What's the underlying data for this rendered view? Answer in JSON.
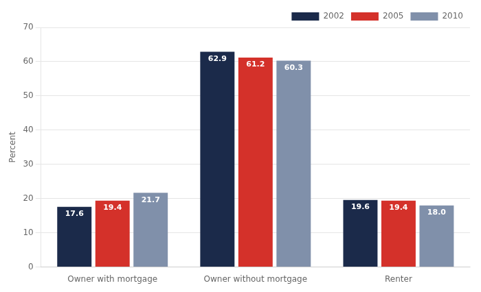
{
  "chart_data": {
    "type": "bar",
    "categories": [
      "Owner with mortgage",
      "Owner without mortgage",
      "Renter"
    ],
    "series": [
      {
        "name": "2002",
        "color": "#1b2a4a",
        "values": [
          17.6,
          62.9,
          19.6
        ],
        "value_labels": [
          "17.6",
          "62.9",
          "19.6"
        ]
      },
      {
        "name": "2005",
        "color": "#d4312a",
        "values": [
          19.4,
          61.2,
          19.4
        ],
        "value_labels": [
          "19.4",
          "61.2",
          "19.4"
        ]
      },
      {
        "name": "2010",
        "color": "#8090aa",
        "values": [
          21.7,
          60.3,
          18.0
        ],
        "value_labels": [
          "21.7",
          "60.3",
          "18.0"
        ]
      }
    ],
    "ylabel": "Percent",
    "ylim": [
      0,
      70
    ],
    "yticks": [
      0,
      10,
      20,
      30,
      40,
      50,
      60,
      70
    ],
    "grid": true,
    "legend": "upper right",
    "data_labels": true
  }
}
